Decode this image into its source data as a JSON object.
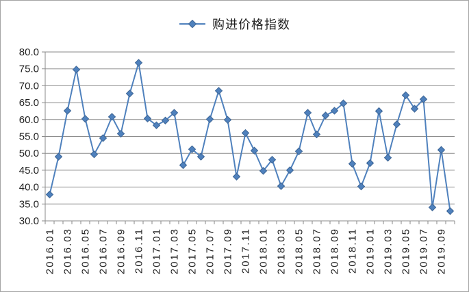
{
  "window": {
    "background": "#ffffff",
    "border_color": "#a3a3a3"
  },
  "chart_data": {
    "type": "line",
    "legend": "购进价格指数",
    "legend_position": "top-center",
    "grid": "horizontal",
    "gridline_color": "#8a8a8a",
    "axis_color": "#8a8a8a",
    "text_color": "#1f1f1f",
    "ylim": [
      30,
      80
    ],
    "ytick_step": 5,
    "y_axis_labels": [
      "80.0",
      "75.0",
      "70.0",
      "65.0",
      "60.0",
      "55.0",
      "50.0",
      "45.0",
      "40.0",
      "35.0",
      "30.0"
    ],
    "x_label_every": 2,
    "x_axis_labels": [
      "2016.01",
      "2016.03",
      "2016.05",
      "2016.07",
      "2016.09",
      "2016.11",
      "2017.01",
      "2017.03",
      "2017.05",
      "2017.07",
      "2017.09",
      "2017.11",
      "2018.01",
      "2018.03",
      "2018.05",
      "2018.07",
      "2018.09",
      "2018.11",
      "2019.01",
      "2019.03",
      "2019.05",
      "2019.07",
      "2019.09"
    ],
    "categories": [
      "2016.01",
      "2016.02",
      "2016.03",
      "2016.04",
      "2016.05",
      "2016.06",
      "2016.07",
      "2016.08",
      "2016.09",
      "2016.10",
      "2016.11",
      "2016.12",
      "2017.01",
      "2017.02",
      "2017.03",
      "2017.04",
      "2017.05",
      "2017.06",
      "2017.07",
      "2017.08",
      "2017.09",
      "2017.10",
      "2017.11",
      "2017.12",
      "2018.01",
      "2018.02",
      "2018.03",
      "2018.04",
      "2018.05",
      "2018.06",
      "2018.07",
      "2018.08",
      "2018.09",
      "2018.10",
      "2018.11",
      "2018.12",
      "2019.01",
      "2019.02",
      "2019.03",
      "2019.04",
      "2019.05",
      "2019.06",
      "2019.07",
      "2019.08",
      "2019.09",
      "2019.10"
    ],
    "series": [
      {
        "name": "购进价格指数",
        "color": "#4f81bd",
        "marker": "diamond",
        "marker_edge_color": "#3c6494",
        "values": [
          37.8,
          49.0,
          62.6,
          74.8,
          60.2,
          49.7,
          54.5,
          60.8,
          55.8,
          67.7,
          76.8,
          60.3,
          58.3,
          59.7,
          62.0,
          46.5,
          51.2,
          49.0,
          60.1,
          68.5,
          59.9,
          43.1,
          56.0,
          50.8,
          44.8,
          48.1,
          40.3,
          45.0,
          50.6,
          62.0,
          55.6,
          61.2,
          62.6,
          64.8,
          46.9,
          40.2,
          47.1,
          62.5,
          48.7,
          58.6,
          67.2,
          63.2,
          66.0,
          34.0,
          51.0,
          32.9
        ]
      }
    ]
  }
}
